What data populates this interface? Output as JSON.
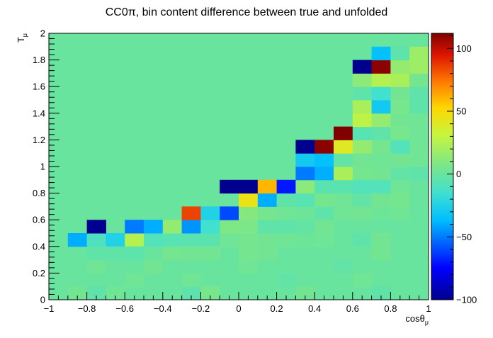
{
  "chart_data": {
    "type": "heatmap",
    "title": "CC0π, bin content difference between true and unfolded",
    "xlabel": "cosθ_μ",
    "ylabel": "T_μ",
    "xlim": [
      -1,
      1
    ],
    "ylim": [
      0,
      2
    ],
    "x_ticks": [
      "−1",
      "−0.8",
      "−0.6",
      "−0.4",
      "−0.2",
      "0",
      "0.2",
      "0.4",
      "0.6",
      "0.8",
      "1"
    ],
    "y_ticks": [
      "0",
      "0.2",
      "0.4",
      "0.6",
      "0.8",
      "1",
      "1.2",
      "1.4",
      "1.6",
      "1.8",
      "2"
    ],
    "colorbar_ticks": [
      "−100",
      "−50",
      "0",
      "50",
      "100"
    ],
    "zlim": [
      -100,
      112
    ],
    "background_value": 0,
    "bins": [
      {
        "x": [
          -0.9,
          -0.8
        ],
        "y": [
          0.4,
          0.5
        ],
        "v": -40
      },
      {
        "x": [
          -0.8,
          -0.7
        ],
        "y": [
          0.4,
          0.5
        ],
        "v": -10
      },
      {
        "x": [
          -0.7,
          -0.6
        ],
        "y": [
          0.4,
          0.5
        ],
        "v": -25
      },
      {
        "x": [
          -0.6,
          -0.5
        ],
        "y": [
          0.4,
          0.5
        ],
        "v": 25
      },
      {
        "x": [
          -0.5,
          -0.4
        ],
        "y": [
          0.4,
          0.5
        ],
        "v": -8
      },
      {
        "x": [
          -0.4,
          -0.3
        ],
        "y": [
          0.4,
          0.5
        ],
        "v": -6
      },
      {
        "x": [
          -0.3,
          -0.2
        ],
        "y": [
          0.4,
          0.5
        ],
        "v": -5
      },
      {
        "x": [
          -0.2,
          -0.1
        ],
        "y": [
          0.4,
          0.5
        ],
        "v": -5
      },
      {
        "x": [
          -0.1,
          0.0
        ],
        "y": [
          0.4,
          0.5
        ],
        "v": 3
      },
      {
        "x": [
          0.0,
          0.1
        ],
        "y": [
          0.4,
          0.5
        ],
        "v": 5
      },
      {
        "x": [
          0.1,
          0.2
        ],
        "y": [
          0.4,
          0.5
        ],
        "v": 4
      },
      {
        "x": [
          0.2,
          0.3
        ],
        "y": [
          0.4,
          0.5
        ],
        "v": 3
      },
      {
        "x": [
          0.3,
          0.4
        ],
        "y": [
          0.4,
          0.5
        ],
        "v": 2
      },
      {
        "x": [
          0.4,
          0.5
        ],
        "y": [
          0.4,
          0.5
        ],
        "v": 3
      },
      {
        "x": [
          0.6,
          0.7
        ],
        "y": [
          0.4,
          0.5
        ],
        "v": -3
      },
      {
        "x": [
          0.7,
          0.8
        ],
        "y": [
          0.4,
          0.5
        ],
        "v": 4
      },
      {
        "x": [
          -0.8,
          -0.7
        ],
        "y": [
          0.5,
          0.6
        ],
        "v": -100
      },
      {
        "x": [
          -0.6,
          -0.5
        ],
        "y": [
          0.5,
          0.6
        ],
        "v": -50
      },
      {
        "x": [
          -0.5,
          -0.4
        ],
        "y": [
          0.5,
          0.6
        ],
        "v": -40
      },
      {
        "x": [
          -0.4,
          -0.3
        ],
        "y": [
          0.5,
          0.6
        ],
        "v": 15
      },
      {
        "x": [
          -0.3,
          -0.2
        ],
        "y": [
          0.5,
          0.6
        ],
        "v": -45
      },
      {
        "x": [
          -0.2,
          -0.1
        ],
        "y": [
          0.5,
          0.6
        ],
        "v": -15
      },
      {
        "x": [
          -0.1,
          0.0
        ],
        "y": [
          0.5,
          0.6
        ],
        "v": 8
      },
      {
        "x": [
          0.0,
          0.1
        ],
        "y": [
          0.5,
          0.6
        ],
        "v": 7
      },
      {
        "x": [
          0.1,
          0.2
        ],
        "y": [
          0.5,
          0.6
        ],
        "v": -3
      },
      {
        "x": [
          0.2,
          0.3
        ],
        "y": [
          0.5,
          0.6
        ],
        "v": -3
      },
      {
        "x": [
          0.3,
          0.4
        ],
        "y": [
          0.5,
          0.6
        ],
        "v": -2
      },
      {
        "x": [
          0.4,
          0.5
        ],
        "y": [
          0.5,
          0.6
        ],
        "v": 4
      },
      {
        "x": [
          -0.3,
          -0.2
        ],
        "y": [
          0.6,
          0.7
        ],
        "v": 85
      },
      {
        "x": [
          -0.2,
          -0.1
        ],
        "y": [
          0.6,
          0.7
        ],
        "v": -25
      },
      {
        "x": [
          -0.1,
          0.0
        ],
        "y": [
          0.6,
          0.7
        ],
        "v": -60
      },
      {
        "x": [
          0.0,
          0.1
        ],
        "y": [
          0.6,
          0.7
        ],
        "v": 10
      },
      {
        "x": [
          0.1,
          0.2
        ],
        "y": [
          0.6,
          0.7
        ],
        "v": 5
      },
      {
        "x": [
          0.2,
          0.3
        ],
        "y": [
          0.6,
          0.7
        ],
        "v": 3
      },
      {
        "x": [
          0.3,
          0.4
        ],
        "y": [
          0.6,
          0.7
        ],
        "v": 2
      },
      {
        "x": [
          0.4,
          0.5
        ],
        "y": [
          0.6,
          0.7
        ],
        "v": -3
      },
      {
        "x": [
          0.5,
          0.6
        ],
        "y": [
          0.6,
          0.7
        ],
        "v": 3
      },
      {
        "x": [
          0.6,
          0.7
        ],
        "y": [
          0.6,
          0.7
        ],
        "v": 4
      },
      {
        "x": [
          0.7,
          0.8
        ],
        "y": [
          0.6,
          0.7
        ],
        "v": 2
      },
      {
        "x": [
          0.8,
          0.9
        ],
        "y": [
          0.6,
          0.7
        ],
        "v": 3
      },
      {
        "x": [
          0.0,
          0.1
        ],
        "y": [
          0.7,
          0.8
        ],
        "v": 45
      },
      {
        "x": [
          0.1,
          0.2
        ],
        "y": [
          0.7,
          0.8
        ],
        "v": -40
      },
      {
        "x": [
          0.2,
          0.3
        ],
        "y": [
          0.7,
          0.8
        ],
        "v": -3
      },
      {
        "x": [
          0.3,
          0.4
        ],
        "y": [
          0.7,
          0.8
        ],
        "v": -6
      },
      {
        "x": [
          0.4,
          0.5
        ],
        "y": [
          0.7,
          0.8
        ],
        "v": 5
      },
      {
        "x": [
          0.5,
          0.6
        ],
        "y": [
          0.7,
          0.8
        ],
        "v": 3
      },
      {
        "x": [
          0.6,
          0.7
        ],
        "y": [
          0.7,
          0.8
        ],
        "v": -2
      },
      {
        "x": [
          0.7,
          0.8
        ],
        "y": [
          0.7,
          0.8
        ],
        "v": 4
      },
      {
        "x": [
          0.8,
          0.9
        ],
        "y": [
          0.7,
          0.8
        ],
        "v": 5
      },
      {
        "x": [
          -0.1,
          0.0
        ],
        "y": [
          0.8,
          0.9
        ],
        "v": -100
      },
      {
        "x": [
          0.0,
          0.1
        ],
        "y": [
          0.8,
          0.9
        ],
        "v": -100
      },
      {
        "x": [
          0.1,
          0.2
        ],
        "y": [
          0.8,
          0.9
        ],
        "v": 60
      },
      {
        "x": [
          0.2,
          0.3
        ],
        "y": [
          0.8,
          0.9
        ],
        "v": -70
      },
      {
        "x": [
          0.3,
          0.4
        ],
        "y": [
          0.8,
          0.9
        ],
        "v": 12
      },
      {
        "x": [
          0.4,
          0.5
        ],
        "y": [
          0.8,
          0.9
        ],
        "v": -5
      },
      {
        "x": [
          0.5,
          0.6
        ],
        "y": [
          0.8,
          0.9
        ],
        "v": -5
      },
      {
        "x": [
          0.6,
          0.7
        ],
        "y": [
          0.8,
          0.9
        ],
        "v": -8
      },
      {
        "x": [
          0.7,
          0.8
        ],
        "y": [
          0.8,
          0.9
        ],
        "v": -8
      },
      {
        "x": [
          0.8,
          0.9
        ],
        "y": [
          0.8,
          0.9
        ],
        "v": 3
      },
      {
        "x": [
          0.3,
          0.4
        ],
        "y": [
          0.9,
          1.0
        ],
        "v": -50
      },
      {
        "x": [
          0.4,
          0.5
        ],
        "y": [
          0.9,
          1.0
        ],
        "v": -40
      },
      {
        "x": [
          0.5,
          0.6
        ],
        "y": [
          0.9,
          1.0
        ],
        "v": 22
      },
      {
        "x": [
          0.6,
          0.7
        ],
        "y": [
          0.9,
          1.0
        ],
        "v": 5
      },
      {
        "x": [
          0.7,
          0.8
        ],
        "y": [
          0.9,
          1.0
        ],
        "v": 4
      },
      {
        "x": [
          0.8,
          0.9
        ],
        "y": [
          0.9,
          1.0
        ],
        "v": -2
      },
      {
        "x": [
          0.9,
          1.0
        ],
        "y": [
          0.9,
          1.0
        ],
        "v": -3
      },
      {
        "x": [
          0.3,
          0.4
        ],
        "y": [
          1.0,
          1.1
        ],
        "v": -30
      },
      {
        "x": [
          0.4,
          0.5
        ],
        "y": [
          1.0,
          1.1
        ],
        "v": -35
      },
      {
        "x": [
          0.5,
          0.6
        ],
        "y": [
          1.0,
          1.1
        ],
        "v": -2
      },
      {
        "x": [
          0.6,
          0.7
        ],
        "y": [
          1.0,
          1.1
        ],
        "v": 4
      },
      {
        "x": [
          0.7,
          0.8
        ],
        "y": [
          1.0,
          1.1
        ],
        "v": 3
      },
      {
        "x": [
          0.8,
          0.9
        ],
        "y": [
          1.0,
          1.1
        ],
        "v": 4
      },
      {
        "x": [
          0.9,
          1.0
        ],
        "y": [
          1.0,
          1.1
        ],
        "v": 3
      },
      {
        "x": [
          0.3,
          0.4
        ],
        "y": [
          1.1,
          1.2
        ],
        "v": -100
      },
      {
        "x": [
          0.4,
          0.5
        ],
        "y": [
          1.1,
          1.2
        ],
        "v": 110
      },
      {
        "x": [
          0.5,
          0.6
        ],
        "y": [
          1.1,
          1.2
        ],
        "v": 40
      },
      {
        "x": [
          0.6,
          0.7
        ],
        "y": [
          1.1,
          1.2
        ],
        "v": 15
      },
      {
        "x": [
          0.7,
          0.8
        ],
        "y": [
          1.1,
          1.2
        ],
        "v": 5
      },
      {
        "x": [
          0.8,
          0.9
        ],
        "y": [
          1.1,
          1.2
        ],
        "v": -8
      },
      {
        "x": [
          0.9,
          1.0
        ],
        "y": [
          1.1,
          1.2
        ],
        "v": 3
      },
      {
        "x": [
          0.5,
          0.6
        ],
        "y": [
          1.2,
          1.3
        ],
        "v": 112
      },
      {
        "x": [
          0.6,
          0.7
        ],
        "y": [
          1.2,
          1.3
        ],
        "v": -6
      },
      {
        "x": [
          0.7,
          0.8
        ],
        "y": [
          1.2,
          1.3
        ],
        "v": -3
      },
      {
        "x": [
          0.8,
          0.9
        ],
        "y": [
          1.2,
          1.3
        ],
        "v": 6
      },
      {
        "x": [
          0.9,
          1.0
        ],
        "y": [
          1.2,
          1.3
        ],
        "v": 3
      },
      {
        "x": [
          0.6,
          0.7
        ],
        "y": [
          1.3,
          1.4
        ],
        "v": 28
      },
      {
        "x": [
          0.7,
          0.8
        ],
        "y": [
          1.3,
          1.4
        ],
        "v": 15
      },
      {
        "x": [
          0.8,
          0.9
        ],
        "y": [
          1.3,
          1.4
        ],
        "v": 4
      },
      {
        "x": [
          0.9,
          1.0
        ],
        "y": [
          1.3,
          1.4
        ],
        "v": 3
      },
      {
        "x": [
          0.6,
          0.7
        ],
        "y": [
          1.4,
          1.5
        ],
        "v": 22
      },
      {
        "x": [
          0.7,
          0.8
        ],
        "y": [
          1.4,
          1.5
        ],
        "v": -30
      },
      {
        "x": [
          0.8,
          0.9
        ],
        "y": [
          1.4,
          1.5
        ],
        "v": 6
      },
      {
        "x": [
          0.9,
          1.0
        ],
        "y": [
          1.4,
          1.5
        ],
        "v": -3
      },
      {
        "x": [
          0.6,
          0.7
        ],
        "y": [
          1.5,
          1.6
        ],
        "v": -3
      },
      {
        "x": [
          0.7,
          0.8
        ],
        "y": [
          1.5,
          1.6
        ],
        "v": -15
      },
      {
        "x": [
          0.8,
          0.9
        ],
        "y": [
          1.5,
          1.6
        ],
        "v": 4
      },
      {
        "x": [
          0.9,
          1.0
        ],
        "y": [
          1.5,
          1.6
        ],
        "v": -3
      },
      {
        "x": [
          0.6,
          0.7
        ],
        "y": [
          1.6,
          1.7
        ],
        "v": 12
      },
      {
        "x": [
          0.7,
          0.8
        ],
        "y": [
          1.6,
          1.7
        ],
        "v": 25
      },
      {
        "x": [
          0.8,
          0.9
        ],
        "y": [
          1.6,
          1.7
        ],
        "v": 22
      },
      {
        "x": [
          0.9,
          1.0
        ],
        "y": [
          1.6,
          1.7
        ],
        "v": 5
      },
      {
        "x": [
          0.6,
          0.7
        ],
        "y": [
          1.7,
          1.8
        ],
        "v": -100
      },
      {
        "x": [
          0.7,
          0.8
        ],
        "y": [
          1.7,
          1.8
        ],
        "v": 110
      },
      {
        "x": [
          0.8,
          0.9
        ],
        "y": [
          1.7,
          1.8
        ],
        "v": 15
      },
      {
        "x": [
          0.9,
          1.0
        ],
        "y": [
          1.7,
          1.8
        ],
        "v": 18
      },
      {
        "x": [
          0.7,
          0.8
        ],
        "y": [
          1.8,
          1.9
        ],
        "v": -35
      },
      {
        "x": [
          0.8,
          0.9
        ],
        "y": [
          1.8,
          1.9
        ],
        "v": -4
      },
      {
        "x": [
          0.9,
          1.0
        ],
        "y": [
          1.8,
          1.9
        ],
        "v": 18
      },
      {
        "x": [
          -0.9,
          -0.8
        ],
        "y": [
          0.0,
          0.1
        ],
        "v": 4
      },
      {
        "x": [
          -0.8,
          -0.7
        ],
        "y": [
          0.0,
          0.1
        ],
        "v": -3
      },
      {
        "x": [
          -0.7,
          -0.6
        ],
        "y": [
          0.0,
          0.1
        ],
        "v": 3
      },
      {
        "x": [
          -0.3,
          -0.2
        ],
        "y": [
          0.0,
          0.1
        ],
        "v": -4
      },
      {
        "x": [
          -0.2,
          -0.1
        ],
        "y": [
          0.0,
          0.1
        ],
        "v": 6
      },
      {
        "x": [
          0.3,
          0.4
        ],
        "y": [
          0.0,
          0.1
        ],
        "v": 4
      },
      {
        "x": [
          0.7,
          0.8
        ],
        "y": [
          0.0,
          0.1
        ],
        "v": -3
      },
      {
        "x": [
          -0.6,
          -0.5
        ],
        "y": [
          0.1,
          0.2
        ],
        "v": 3
      },
      {
        "x": [
          -0.3,
          -0.2
        ],
        "y": [
          0.1,
          0.2
        ],
        "v": 3
      },
      {
        "x": [
          0.2,
          0.3
        ],
        "y": [
          0.1,
          0.2
        ],
        "v": -2
      },
      {
        "x": [
          0.6,
          0.7
        ],
        "y": [
          0.1,
          0.2
        ],
        "v": 3
      },
      {
        "x": [
          -0.8,
          -0.7
        ],
        "y": [
          0.2,
          0.3
        ],
        "v": 3
      },
      {
        "x": [
          -0.5,
          -0.4
        ],
        "y": [
          0.2,
          0.3
        ],
        "v": 4
      },
      {
        "x": [
          0.0,
          0.1
        ],
        "y": [
          0.2,
          0.3
        ],
        "v": 3
      },
      {
        "x": [
          0.5,
          0.6
        ],
        "y": [
          0.2,
          0.3
        ],
        "v": -2
      },
      {
        "x": [
          -0.8,
          -0.7
        ],
        "y": [
          0.3,
          0.4
        ],
        "v": -3
      },
      {
        "x": [
          -0.7,
          -0.6
        ],
        "y": [
          0.3,
          0.4
        ],
        "v": -3
      },
      {
        "x": [
          -0.6,
          -0.5
        ],
        "y": [
          0.3,
          0.4
        ],
        "v": -4
      },
      {
        "x": [
          -0.4,
          -0.3
        ],
        "y": [
          0.3,
          0.4
        ],
        "v": 5
      },
      {
        "x": [
          -0.3,
          -0.2
        ],
        "y": [
          0.3,
          0.4
        ],
        "v": 4
      },
      {
        "x": [
          -0.2,
          -0.1
        ],
        "y": [
          0.3,
          0.4
        ],
        "v": 4
      },
      {
        "x": [
          0.0,
          0.1
        ],
        "y": [
          0.3,
          0.4
        ],
        "v": 5
      },
      {
        "x": [
          0.1,
          0.2
        ],
        "y": [
          0.3,
          0.4
        ],
        "v": 4
      },
      {
        "x": [
          0.7,
          0.8
        ],
        "y": [
          0.3,
          0.4
        ],
        "v": 4
      }
    ]
  }
}
